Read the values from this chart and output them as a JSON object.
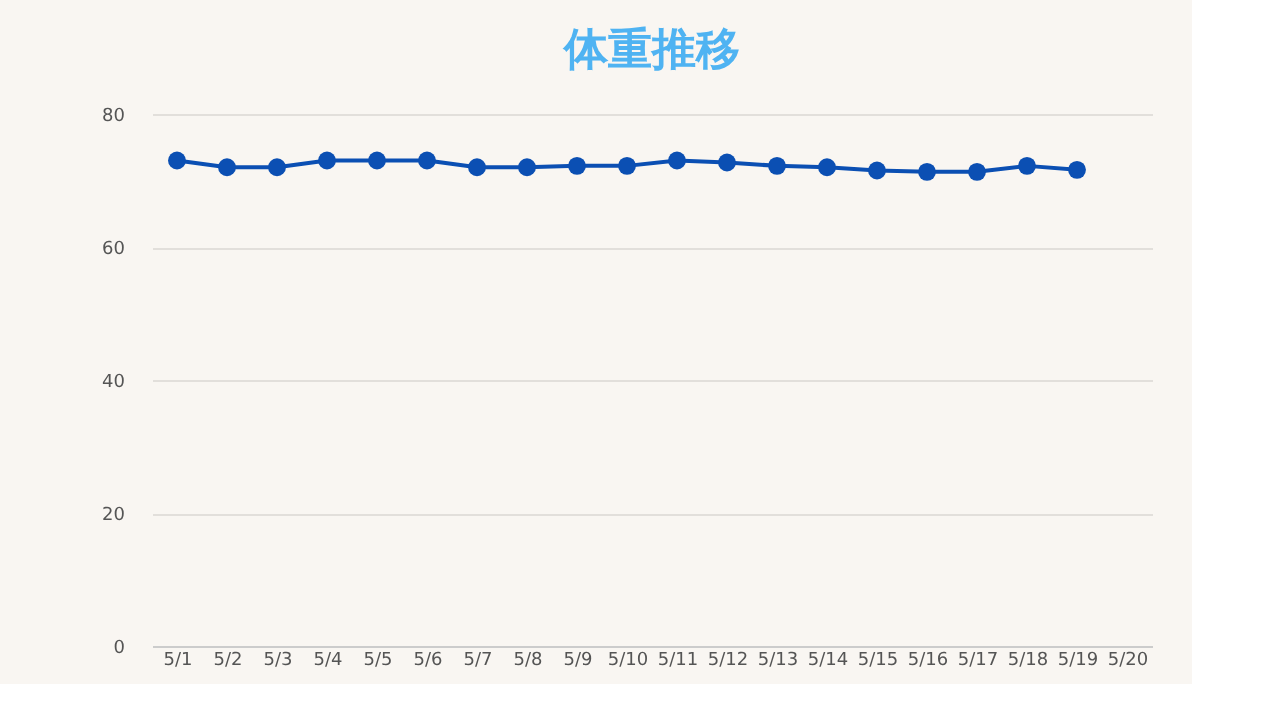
{
  "chart_data": {
    "type": "line",
    "title": "体重推移",
    "categories": [
      "5/1",
      "5/2",
      "5/3",
      "5/4",
      "5/5",
      "5/6",
      "5/7",
      "5/8",
      "5/9",
      "5/10",
      "5/11",
      "5/12",
      "5/13",
      "5/14",
      "5/15",
      "5/16",
      "5/17",
      "5/18",
      "5/19",
      "5/20"
    ],
    "series": [
      {
        "color": "#0b4fb3",
        "values": [
          73,
          72,
          72,
          73,
          73,
          73,
          72,
          72,
          72.2,
          72.2,
          73,
          72.7,
          72.2,
          72,
          71.5,
          71.3,
          71.3,
          72.2,
          71.6,
          null
        ]
      }
    ],
    "ylim": [
      0,
      80
    ],
    "yticks": [
      0,
      20,
      40,
      60,
      80
    ],
    "grid": "y",
    "marker": "circle",
    "line_style": "solid"
  }
}
